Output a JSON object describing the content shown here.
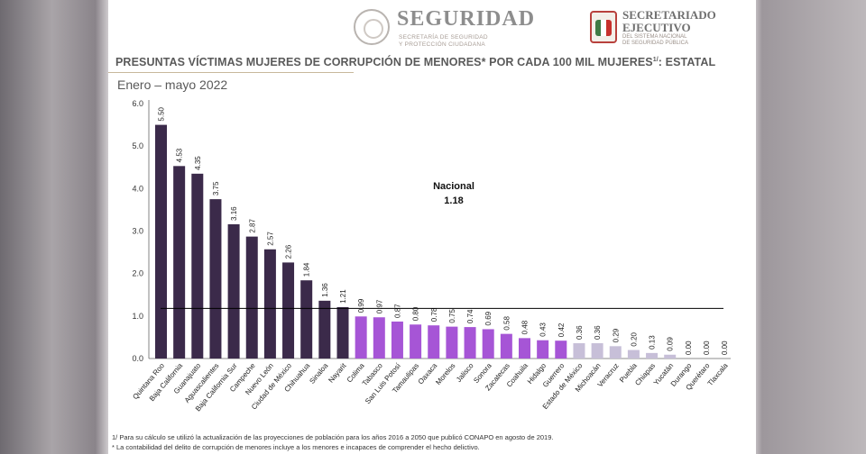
{
  "header": {
    "brand": "SEGURIDAD",
    "brand_sub_1": "SECRETARÍA DE SEGURIDAD",
    "brand_sub_2": "Y PROTECCIÓN CIUDADANA",
    "org_line_1": "SECRETARIADO",
    "org_line_2": "EJECUTIVO",
    "org_sub_1": "DEL SISTEMA NACIONAL",
    "org_sub_2": "DE SEGURIDAD PÚBLICA"
  },
  "title": "PRESUNTAS VÍCTIMAS  MUJERES DE CORRUPCIÓN DE MENORES* POR CADA 100 MIL MUJERES",
  "title_sup": "1/",
  "title_suffix": ": ESTATAL",
  "subtitle": "Enero – mayo 2022",
  "footnotes": [
    "1/ Para su cálculo se utilizó la actualización de las proyecciones de población para los años 2016 a 2050 que publicó CONAPO en agosto de 2019.",
    "* La contabilidad del delito de corrupción de menores incluye a los menores e incapaces de comprender el hecho delictivo."
  ],
  "colors": {
    "high": "#3b2a4a",
    "mid": "#a655d6",
    "low": "#c7bfd8",
    "national_line": "#000000"
  },
  "chart_data": {
    "type": "bar",
    "categories": [
      "Quintana Roo",
      "Baja California",
      "Guanajuato",
      "Aguascalientes",
      "Baja California Sur",
      "Campeche",
      "Nuevo León",
      "Ciudad de México",
      "Chihuahua",
      "Sinaloa",
      "Nayarit",
      "Colima",
      "Tabasco",
      "San Luis Potosí",
      "Tamaulipas",
      "Oaxaca",
      "Morelos",
      "Jalisco",
      "Sonora",
      "Zacatecas",
      "Coahuila",
      "Hidalgo",
      "Guerrero",
      "Estado de México",
      "Michoacán",
      "Veracruz",
      "Puebla",
      "Chiapas",
      "Yucatán",
      "Durango",
      "Querétaro",
      "Tlaxcala"
    ],
    "values": [
      5.5,
      4.53,
      4.35,
      3.75,
      3.16,
      2.87,
      2.57,
      2.26,
      1.84,
      1.36,
      1.21,
      0.99,
      0.97,
      0.87,
      0.8,
      0.78,
      0.75,
      0.74,
      0.69,
      0.58,
      0.48,
      0.43,
      0.42,
      0.36,
      0.36,
      0.29,
      0.2,
      0.13,
      0.09,
      0.0,
      0.0,
      0.0
    ],
    "value_labels": [
      "5.50",
      "4.53",
      "4.35",
      "3.75",
      "3.16",
      "2.87",
      "2.57",
      "2.26",
      "1.84",
      "1.36",
      "1.21",
      "0.99",
      "0.97",
      "0.87",
      "0.80",
      "0.78",
      "0.75",
      "0.74",
      "0.69",
      "0.58",
      "0.48",
      "0.43",
      "0.42",
      "0.36",
      "0.36",
      "0.29",
      "0.20",
      "0.13",
      "0.09",
      "0.00",
      "0.00",
      "0.00"
    ],
    "groups": [
      "high",
      "high",
      "high",
      "high",
      "high",
      "high",
      "high",
      "high",
      "high",
      "high",
      "high",
      "mid",
      "mid",
      "mid",
      "mid",
      "mid",
      "mid",
      "mid",
      "mid",
      "mid",
      "mid",
      "mid",
      "mid",
      "low",
      "low",
      "low",
      "low",
      "low",
      "low",
      "low",
      "low",
      "low"
    ],
    "yticks": [
      "0.0",
      "1.0",
      "2.0",
      "3.0",
      "4.0",
      "5.0",
      "6.0"
    ],
    "ylim": [
      0,
      6
    ],
    "reference_line": {
      "label": "Nacional",
      "value": 1.18,
      "value_label": "1.18"
    },
    "grid": false,
    "legend": "none"
  }
}
